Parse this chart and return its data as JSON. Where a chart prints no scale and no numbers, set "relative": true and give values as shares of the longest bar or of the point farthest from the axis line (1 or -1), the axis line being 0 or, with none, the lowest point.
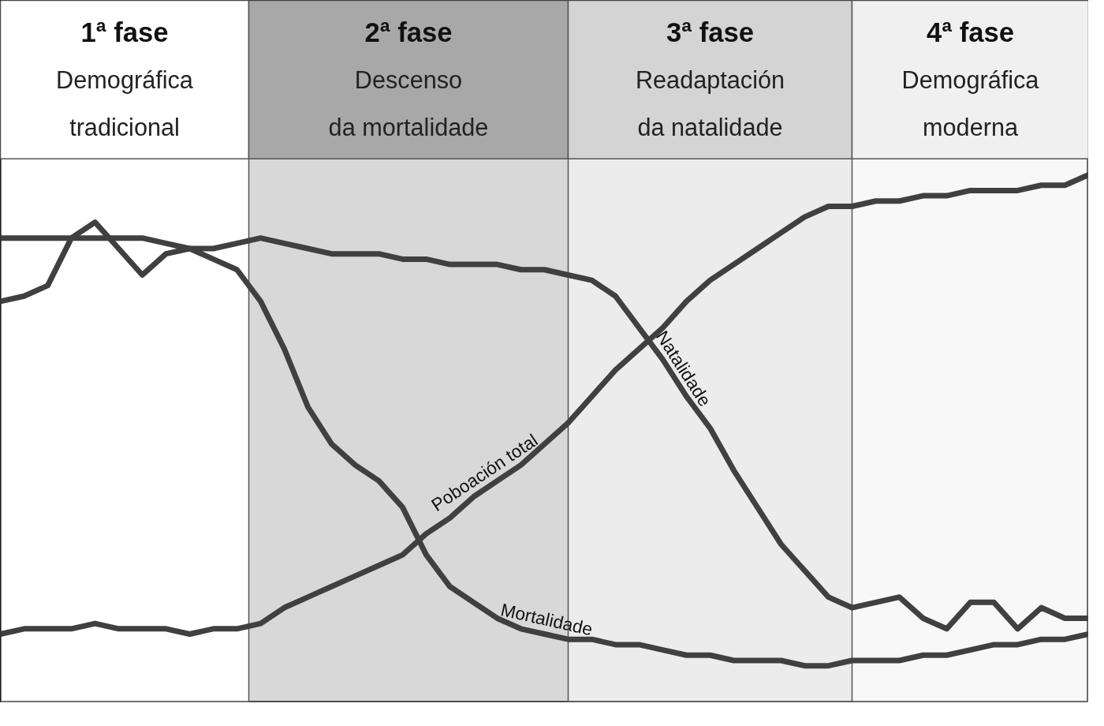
{
  "chart_data": {
    "type": "line",
    "relative": true,
    "tick_labels": false,
    "grid": false,
    "legend": false,
    "categories": [
      null,
      null,
      null,
      null,
      null,
      null,
      null,
      null,
      null,
      null,
      null,
      null,
      null,
      null,
      null,
      null,
      null,
      null,
      null,
      null,
      null,
      null,
      null,
      null,
      null,
      null,
      null,
      null,
      null,
      null,
      null,
      null,
      null,
      null,
      null,
      null,
      null,
      null,
      null,
      null,
      null,
      null,
      null,
      null,
      null,
      null,
      null
    ],
    "series": [
      {
        "name": "Natalidade",
        "color": "#404040",
        "values": [
          0.88,
          0.88,
          0.88,
          0.88,
          0.88,
          0.88,
          0.88,
          0.87,
          0.86,
          0.86,
          0.87,
          0.88,
          0.87,
          0.86,
          0.85,
          0.85,
          0.85,
          0.84,
          0.84,
          0.83,
          0.83,
          0.83,
          0.82,
          0.82,
          0.81,
          0.8,
          0.77,
          0.71,
          0.65,
          0.58,
          0.52,
          0.44,
          0.37,
          0.3,
          0.25,
          0.2,
          0.18,
          0.19,
          0.2,
          0.16,
          0.14,
          0.19,
          0.19,
          0.14,
          0.18,
          0.16,
          0.16
        ]
      },
      {
        "name": "Mortalidade",
        "color": "#404040",
        "values": [
          0.76,
          0.77,
          0.79,
          0.88,
          0.91,
          0.86,
          0.81,
          0.85,
          0.86,
          0.84,
          0.82,
          0.76,
          0.67,
          0.56,
          0.49,
          0.45,
          0.42,
          0.37,
          0.28,
          0.22,
          0.19,
          0.16,
          0.14,
          0.13,
          0.12,
          0.12,
          0.11,
          0.11,
          0.1,
          0.09,
          0.09,
          0.08,
          0.08,
          0.08,
          0.07,
          0.07,
          0.08,
          0.08,
          0.08,
          0.09,
          0.09,
          0.1,
          0.11,
          0.11,
          0.12,
          0.12,
          0.13
        ]
      },
      {
        "name": "Poboación total",
        "color": "#404040",
        "values": [
          0.13,
          0.14,
          0.14,
          0.14,
          0.15,
          0.14,
          0.14,
          0.14,
          0.13,
          0.14,
          0.14,
          0.15,
          0.18,
          0.2,
          0.22,
          0.24,
          0.26,
          0.28,
          0.32,
          0.35,
          0.39,
          0.42,
          0.45,
          0.49,
          0.53,
          0.58,
          0.63,
          0.67,
          0.71,
          0.76,
          0.8,
          0.83,
          0.86,
          0.89,
          0.92,
          0.94,
          0.94,
          0.95,
          0.95,
          0.96,
          0.96,
          0.97,
          0.97,
          0.97,
          0.98,
          0.98,
          1
        ]
      }
    ],
    "annotations": [
      "1ª fase\nDemográfica tradicional",
      "2ª fase\nDescenso da mortalidade",
      "3ª fase\nReadaptación da natalidade",
      "4ª fase\nDemográfica moderna"
    ]
  }
}
